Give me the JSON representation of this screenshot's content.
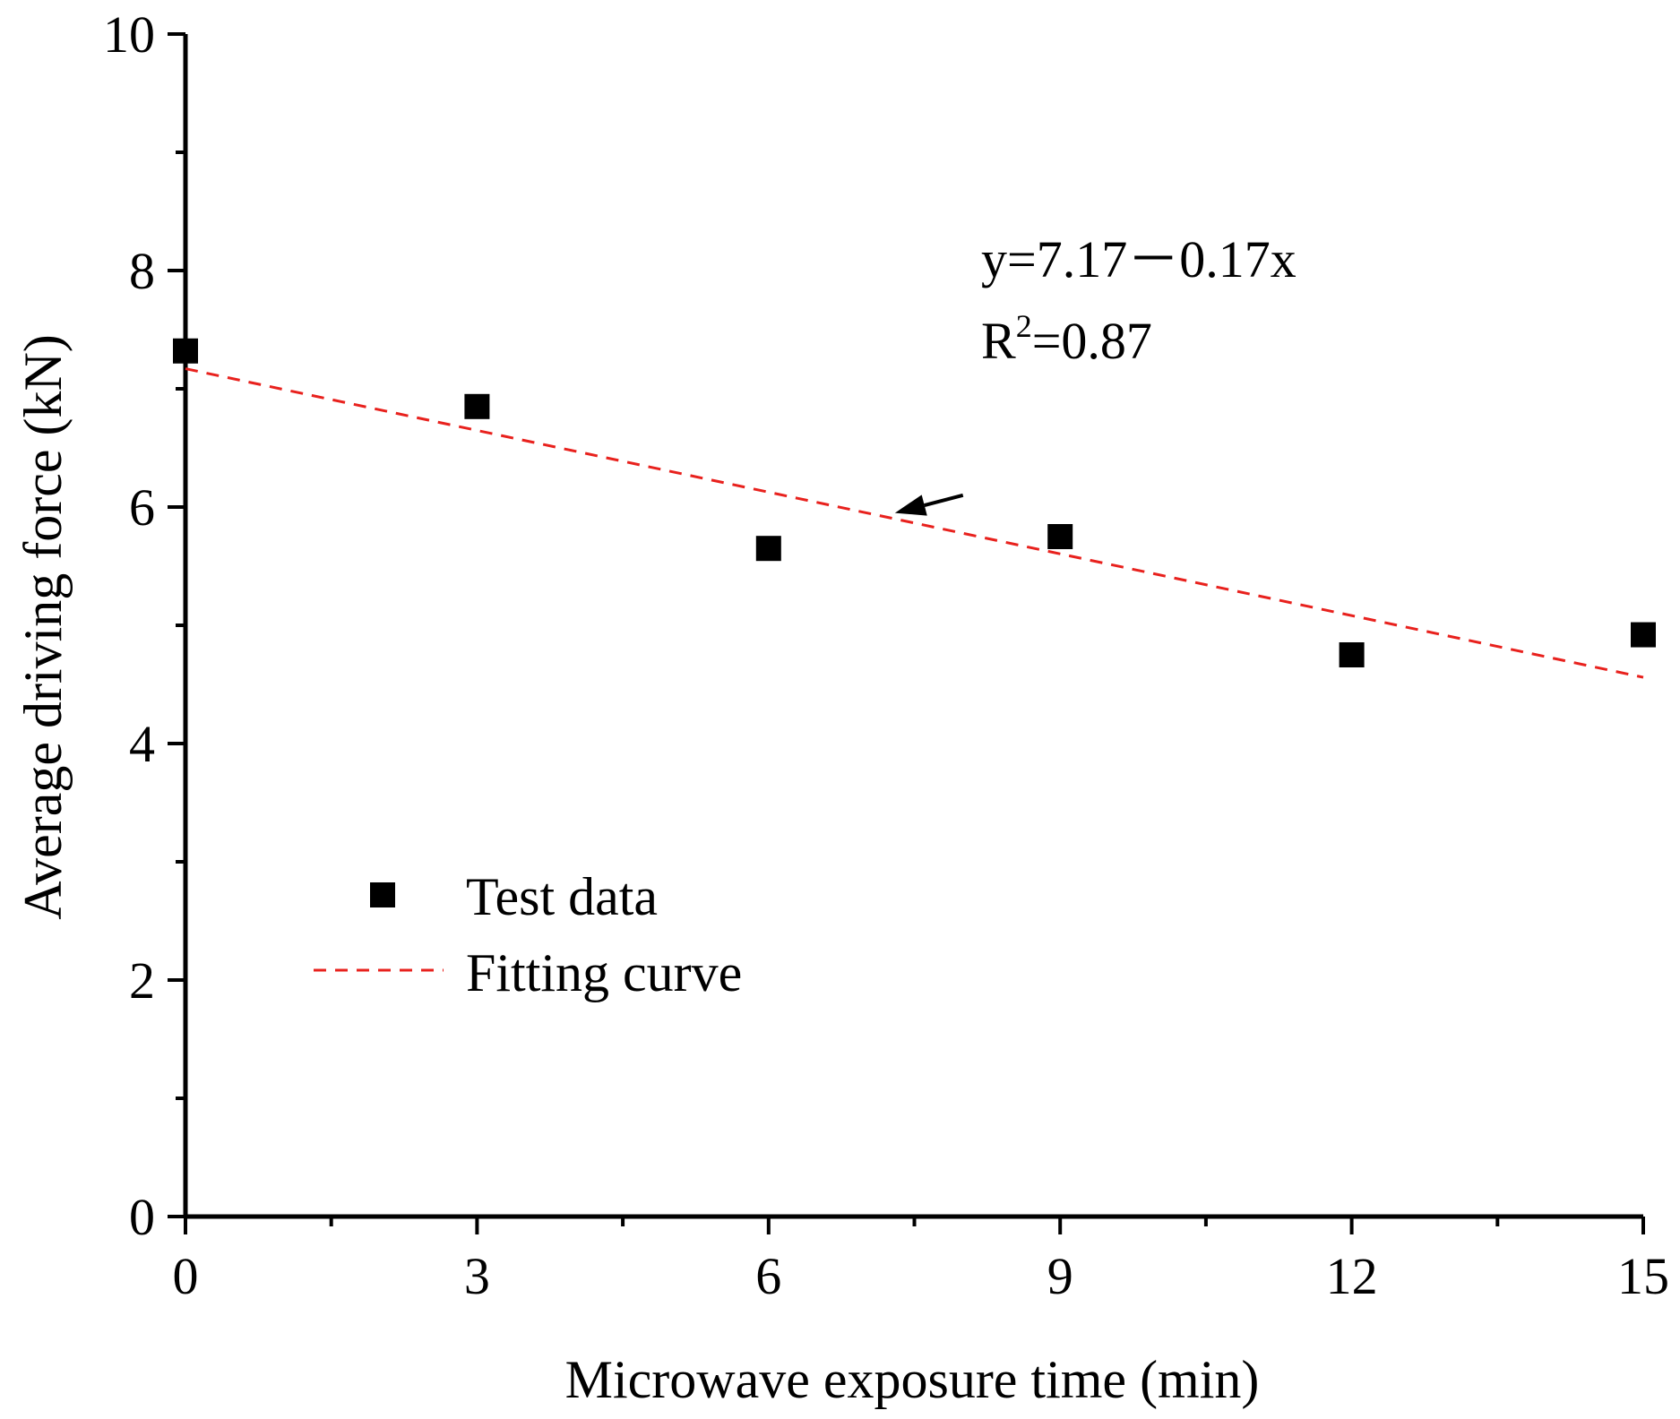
{
  "chart_data": {
    "type": "scatter",
    "xlabel": "Microwave exposure time (min)",
    "ylabel": "Average driving force (kN)",
    "xlim": [
      0,
      15
    ],
    "ylim": [
      0,
      10
    ],
    "x_ticks": [
      0,
      3,
      6,
      9,
      12,
      15
    ],
    "x_tick_labels": [
      "0",
      "3",
      "6",
      "9",
      "12",
      "15"
    ],
    "y_ticks": [
      0,
      2,
      4,
      6,
      8,
      10
    ],
    "y_tick_labels": [
      "0",
      "2",
      "4",
      "6",
      "8",
      "10"
    ],
    "grid": false,
    "series": [
      {
        "name": "Test data",
        "kind": "scatter",
        "marker": "square",
        "color": "#000000",
        "x": [
          0,
          3,
          6,
          9,
          12,
          15
        ],
        "y": [
          7.32,
          6.85,
          5.65,
          5.75,
          4.75,
          4.92
        ]
      },
      {
        "name": "Fitting curve",
        "kind": "line",
        "style": "dashed",
        "color": "#e8211d",
        "intercept": 7.17,
        "slope": -0.174,
        "x": [
          0,
          15
        ],
        "y": [
          7.17,
          4.56
        ]
      }
    ],
    "legend": {
      "position": "lower-left",
      "entries": [
        "Test data",
        "Fitting curve"
      ]
    },
    "annotation": {
      "equation": "y=7.17－0.17x",
      "r2_base": "R",
      "r2_exponent": "2",
      "r2_value": "=0.87",
      "arrow_from": [
        8.0,
        6.1
      ],
      "arrow_to": [
        7.3,
        5.95
      ]
    }
  }
}
